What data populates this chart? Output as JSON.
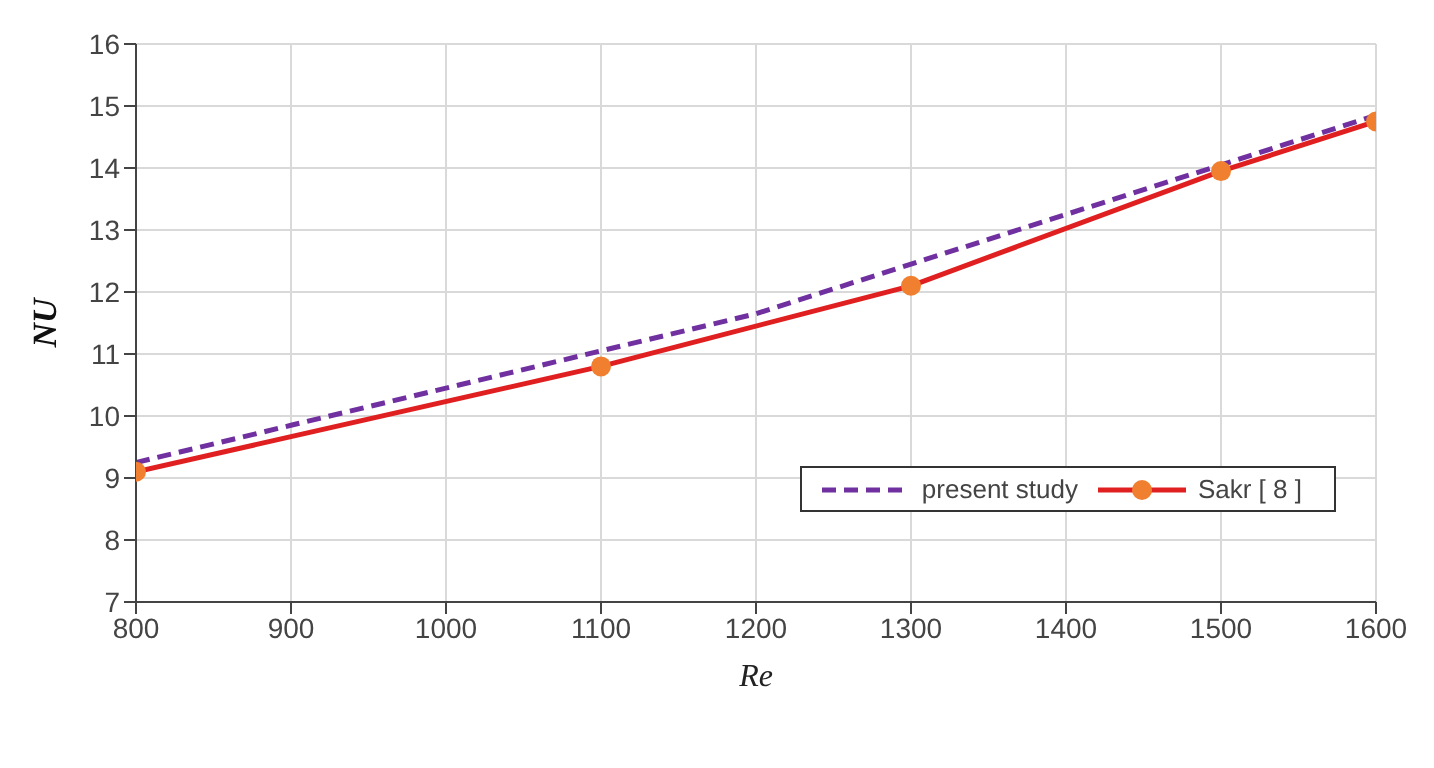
{
  "chart_data": {
    "type": "line",
    "xlabel": "Re",
    "ylabel": "NU",
    "x": [
      800,
      900,
      1000,
      1100,
      1200,
      1300,
      1400,
      1500,
      1600
    ],
    "series": [
      {
        "name": "present study",
        "color": "#7030a0",
        "line_style": "dashed",
        "marker": "none",
        "values": [
          9.25,
          9.85,
          10.45,
          11.05,
          11.65,
          12.45,
          13.25,
          14.05,
          14.85
        ]
      },
      {
        "name": "Sakr [ 8 ]",
        "color": "#e02020",
        "line_style": "solid",
        "marker": "circle",
        "colors": [
          "#f08030",
          "#f08030",
          "#f08030",
          "#f08030",
          "#f08030"
        ],
        "x": [
          800,
          1100,
          1300,
          1500,
          1600
        ],
        "values": [
          9.1,
          10.8,
          12.1,
          13.95,
          14.75
        ]
      }
    ],
    "xlim": [
      800,
      1600
    ],
    "xticks": [
      800,
      900,
      1000,
      1100,
      1200,
      1300,
      1400,
      1500,
      1600
    ],
    "ylim": [
      7,
      16
    ],
    "yticks": [
      7,
      8,
      9,
      10,
      11,
      12,
      13,
      14,
      15,
      16
    ],
    "grid": true,
    "legend": "bottom right"
  }
}
